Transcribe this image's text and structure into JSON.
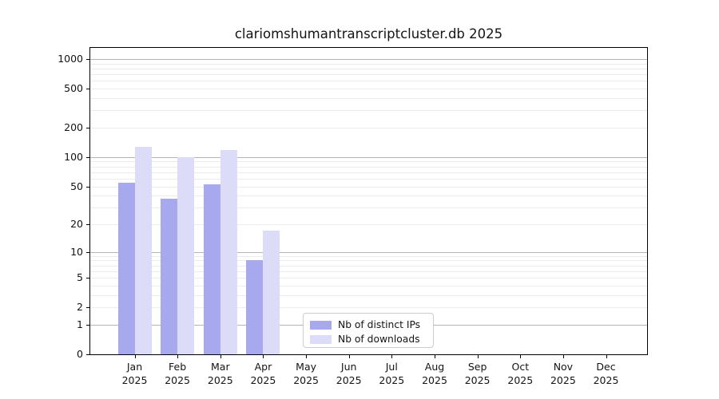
{
  "title": "clariomshumantranscriptcluster.db 2025",
  "colors": {
    "distinct_ips": "#a8a8ee",
    "downloads": "#dcdcf9",
    "major_grid": "#b4b4b4",
    "minor_grid": "#ebebeb",
    "axis": "#000000"
  },
  "legend": {
    "items": [
      {
        "label": "Nb of distinct IPs",
        "color_key": "distinct_ips"
      },
      {
        "label": "Nb of downloads",
        "color_key": "downloads"
      }
    ]
  },
  "chart_data": {
    "type": "bar",
    "title": "clariomshumantranscriptcluster.db 2025",
    "xlabel": "",
    "ylabel": "",
    "scale": "pseudo-log: position proportional to log10(1+y), 0 at baseline",
    "categories": [
      "Jan",
      "Feb",
      "Mar",
      "Apr",
      "May",
      "Jun",
      "Jul",
      "Aug",
      "Sep",
      "Oct",
      "Nov",
      "Dec"
    ],
    "year": "2025",
    "series": [
      {
        "name": "Nb of distinct IPs",
        "values": [
          54,
          37,
          52,
          8,
          0,
          0,
          0,
          0,
          0,
          0,
          0,
          0
        ]
      },
      {
        "name": "Nb of downloads",
        "values": [
          127,
          100,
          118,
          17,
          0,
          0,
          0,
          0,
          0,
          0,
          0,
          0
        ]
      }
    ],
    "y_ticks": [
      1000,
      500,
      200,
      100,
      50,
      20,
      10,
      5,
      2,
      1,
      0
    ],
    "ylim": [
      0,
      1300
    ],
    "grid": true,
    "legend_position": "inside bottom-center"
  }
}
